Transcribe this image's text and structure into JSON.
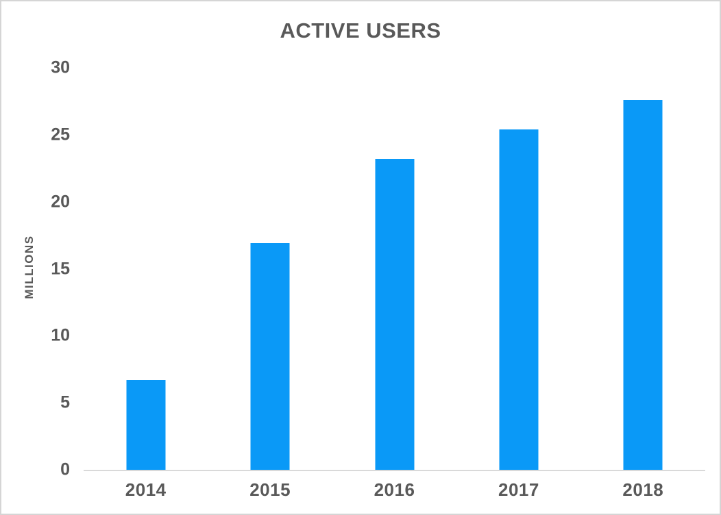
{
  "chart_data": {
    "type": "bar",
    "title": "ACTIVE USERS",
    "ylabel": "MILLIONS",
    "xlabel": "",
    "categories": [
      "2014",
      "2015",
      "2016",
      "2017",
      "2018"
    ],
    "values": [
      6.7,
      16.9,
      23.2,
      25.4,
      27.6
    ],
    "ylim": [
      0,
      30
    ],
    "yticks": [
      0,
      5,
      10,
      15,
      20,
      25,
      30
    ],
    "grid": false,
    "legend_position": "none",
    "colors": {
      "bar": "#0a99f7",
      "text": "#595959",
      "axis_line": "#d9d9d9",
      "frame_border": "#d5d5d5",
      "background": "#ffffff"
    }
  }
}
